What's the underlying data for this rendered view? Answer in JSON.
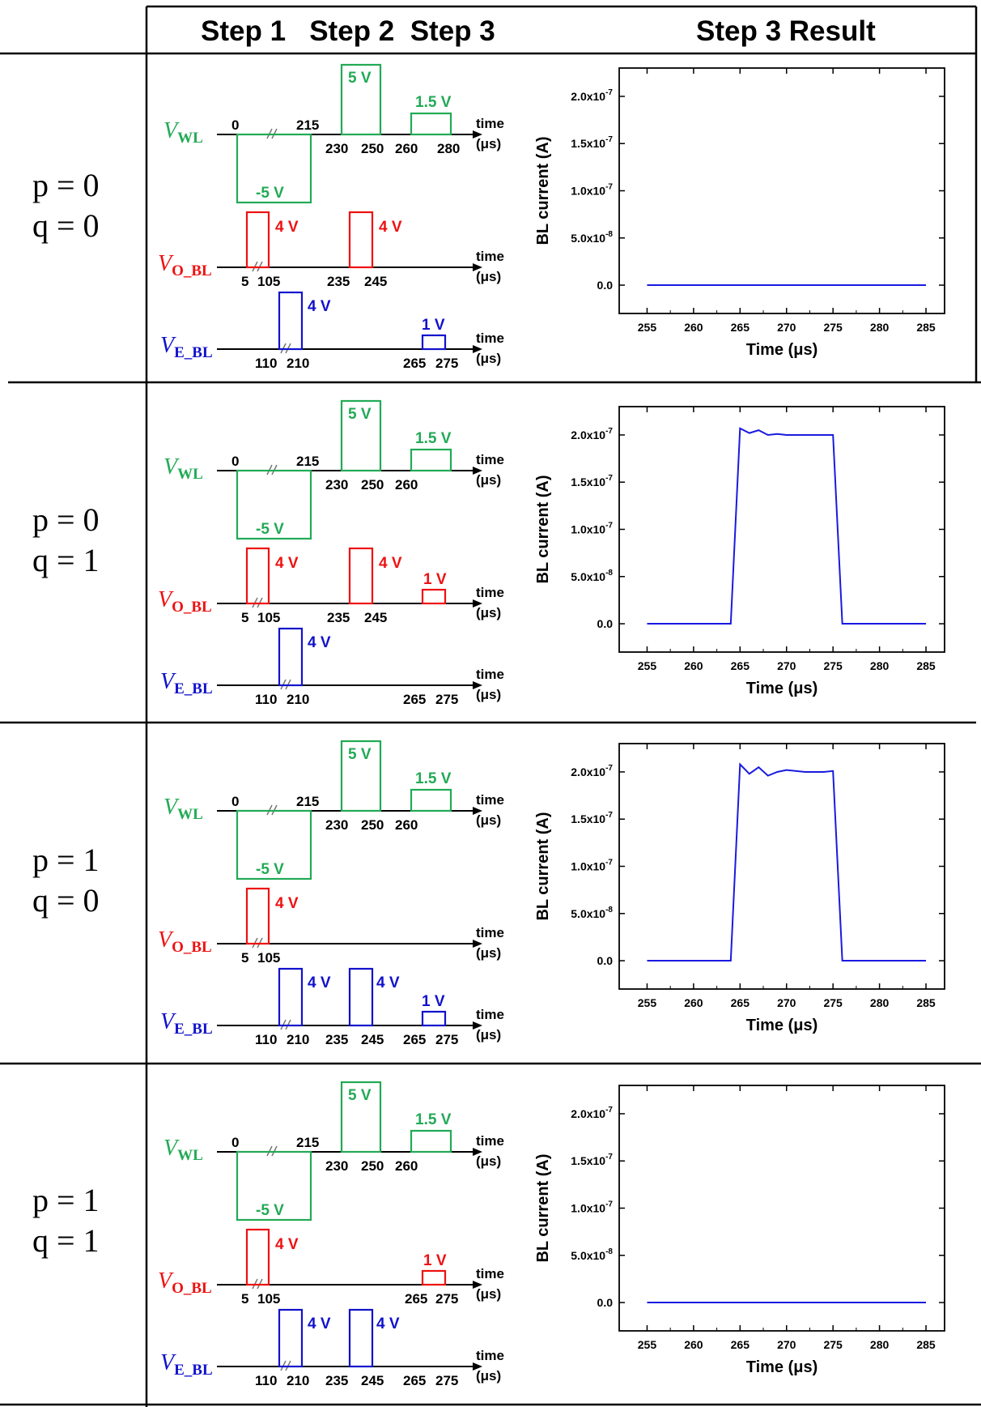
{
  "header": {
    "left": "",
    "steps": "Step 1   Step 2  Step 3",
    "result": "Step 3 Result"
  },
  "colors": {
    "wl": "#22aa55",
    "obl": "#ee1111",
    "ebl": "#1111cc",
    "plot": "#1a1ae0"
  },
  "signals": {
    "wl": {
      "main": "V",
      "sub": "WL"
    },
    "obl": {
      "main": "V",
      "sub": "O_BL"
    },
    "ebl": {
      "main": "V",
      "sub": "E_BL"
    }
  },
  "axis_words": {
    "time": "time",
    "unit": "(μs)"
  },
  "rows": [
    {
      "p": "p = 0",
      "q": "q = 0",
      "wl": {
        "ticks_top": [
          "0",
          "215"
        ],
        "ticks_bottom": [
          "230",
          "250",
          "260",
          "280"
        ],
        "labels": [
          "-5 V",
          "5 V",
          "1.5 V"
        ]
      },
      "obl": {
        "ticks_bottom": [
          "5",
          "105",
          "235",
          "245"
        ],
        "labels": [
          "4 V",
          "4 V"
        ]
      },
      "ebl": {
        "ticks_bottom": [
          "110",
          "210",
          "265",
          "275"
        ],
        "labels": [
          "4 V",
          "1 V"
        ]
      }
    },
    {
      "p": "p = 0",
      "q": "q = 1",
      "wl": {
        "ticks_top": [
          "0",
          "215"
        ],
        "ticks_bottom": [
          "230",
          "250",
          "260"
        ],
        "labels": [
          "-5 V",
          "5 V",
          "1.5 V"
        ]
      },
      "obl": {
        "ticks_bottom": [
          "5",
          "105",
          "235",
          "245"
        ],
        "labels": [
          "4 V",
          "4 V",
          "1 V"
        ]
      },
      "ebl": {
        "ticks_bottom": [
          "110",
          "210",
          "265",
          "275"
        ],
        "labels": [
          "4 V"
        ]
      }
    },
    {
      "p": "p = 1",
      "q": "q = 0",
      "wl": {
        "ticks_top": [
          "0",
          "215"
        ],
        "ticks_bottom": [
          "230",
          "250",
          "260"
        ],
        "labels": [
          "-5 V",
          "5 V",
          "1.5 V"
        ]
      },
      "obl": {
        "ticks_bottom": [
          "5",
          "105"
        ],
        "labels": [
          "4 V"
        ]
      },
      "ebl": {
        "ticks_bottom": [
          "110",
          "210",
          "235",
          "245",
          "265",
          "275"
        ],
        "labels": [
          "4 V",
          "4 V",
          "1 V"
        ]
      }
    },
    {
      "p": "p = 1",
      "q": "q = 1",
      "wl": {
        "ticks_top": [
          "0",
          "215"
        ],
        "ticks_bottom": [
          "230",
          "250",
          "260"
        ],
        "labels": [
          "-5 V",
          "5 V",
          "1.5 V"
        ]
      },
      "obl": {
        "ticks_bottom": [
          "5",
          "105",
          "265",
          "275"
        ],
        "labels": [
          "4 V",
          "1 V"
        ]
      },
      "ebl": {
        "ticks_bottom": [
          "110",
          "210",
          "235",
          "245",
          "265",
          "275"
        ],
        "labels": [
          "4 V",
          "4 V"
        ]
      }
    }
  ],
  "chart_data": [
    {
      "type": "line",
      "title": "",
      "xlabel": "Time (μs)",
      "ylabel": "BL current (A)",
      "xlim": [
        252,
        287
      ],
      "ylim": [
        -3e-08,
        2.3e-07
      ],
      "xticks": [
        "255",
        "260",
        "265",
        "270",
        "275",
        "280",
        "285"
      ],
      "yticks": [
        "0.0",
        "5.0x10-8",
        "1.0x10-7",
        "1.5x10-7",
        "2.0x10-7"
      ],
      "series": [
        {
          "x": [
            255,
            285
          ],
          "y": [
            0,
            0
          ]
        }
      ]
    },
    {
      "type": "line",
      "title": "",
      "xlabel": "Time (μs)",
      "ylabel": "BL current (A)",
      "xlim": [
        252,
        287
      ],
      "ylim": [
        -3e-08,
        2.3e-07
      ],
      "xticks": [
        "255",
        "260",
        "265",
        "270",
        "275",
        "280",
        "285"
      ],
      "yticks": [
        "0.0",
        "5.0x10-8",
        "1.0x10-7",
        "1.5x10-7",
        "2.0x10-7"
      ],
      "series": [
        {
          "x": [
            255,
            264,
            265,
            266,
            267,
            268,
            269,
            270,
            272,
            274,
            275,
            276,
            285
          ],
          "y": [
            0,
            0,
            2.07e-07,
            2.02e-07,
            2.05e-07,
            2e-07,
            2.01e-07,
            2e-07,
            2e-07,
            2e-07,
            2e-07,
            0,
            0
          ]
        }
      ]
    },
    {
      "type": "line",
      "title": "",
      "xlabel": "Time (μs)",
      "ylabel": "BL current (A)",
      "xlim": [
        252,
        287
      ],
      "ylim": [
        -3e-08,
        2.3e-07
      ],
      "xticks": [
        "255",
        "260",
        "265",
        "270",
        "275",
        "280",
        "285"
      ],
      "yticks": [
        "0.0",
        "5.0x10-8",
        "1.0x10-7",
        "1.5x10-7",
        "2.0x10-7"
      ],
      "series": [
        {
          "x": [
            255,
            264,
            265,
            266,
            267,
            268,
            269,
            270,
            272,
            274,
            275,
            276,
            285
          ],
          "y": [
            0,
            0,
            2.08e-07,
            1.98e-07,
            2.05e-07,
            1.96e-07,
            2e-07,
            2.02e-07,
            2e-07,
            2e-07,
            2.01e-07,
            0,
            0
          ]
        }
      ]
    },
    {
      "type": "line",
      "title": "",
      "xlabel": "Time (μs)",
      "ylabel": "BL current (A)",
      "xlim": [
        252,
        287
      ],
      "ylim": [
        -3e-08,
        2.3e-07
      ],
      "xticks": [
        "255",
        "260",
        "265",
        "270",
        "275",
        "280",
        "285"
      ],
      "yticks": [
        "0.0",
        "5.0x10-8",
        "1.0x10-7",
        "1.5x10-7",
        "2.0x10-7"
      ],
      "series": [
        {
          "x": [
            255,
            285
          ],
          "y": [
            0,
            0
          ]
        }
      ]
    }
  ]
}
